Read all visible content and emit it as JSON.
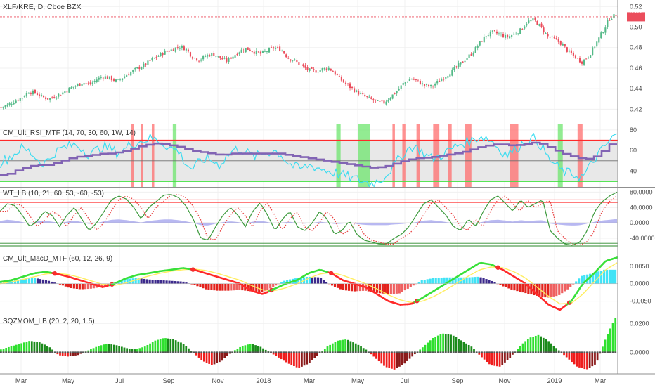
{
  "colors": {
    "candle_up": "#53b987",
    "candle_down": "#eb4d5c",
    "rsi_fast": "#3cdcf0",
    "rsi_slow": "#8264b4",
    "rsi_upper": "#ff2a2a",
    "rsi_lower": "#3fe03f",
    "rsi_mid": "#6e6e6e",
    "rsi_bg": "#e8e8e8",
    "rsi_hit_high": "#ff6e6e",
    "rsi_hit_low": "#6ee66e",
    "wt_line1": "#3c9a3c",
    "wt_line2": "#e84040",
    "wt_hist": "#a6a6ee",
    "wt_ob": "#ff2a2a",
    "wt_os": "#2a8a2a",
    "macd_up": "#39e039",
    "macd_down": "#ff2a2a",
    "macd_signal": "#ffee60",
    "macd_cross": "#ee3030",
    "hist_up_strong": "#3fe3f6",
    "hist_up_weak": "#3c2a8c",
    "hist_down_strong": "#e2221c",
    "hist_down_weak": "#ee6060",
    "sqz_up_strong": "#2fe02f",
    "sqz_up_weak": "#1a8a1a",
    "sqz_down_strong": "#ef1c1c",
    "sqz_down_weak": "#8a1a1a",
    "price_tag": "#eb4d5c",
    "axis_text": "#4a4a4a",
    "divider": "#8f8f8f"
  },
  "panes": {
    "price": {
      "title": "XLF/KRE, D, Cboe BZX",
      "last_label": "0.51"
    },
    "rsi": {
      "title": "CM_Ult_RSI_MTF (14, 70, 30, 60, 1W, 14)"
    },
    "wt": {
      "title": "WT_LB (10, 21, 60, 53, -60, -53)"
    },
    "macd": {
      "title": "CM_Ult_MacD_MTF (60, 12, 26, 9)"
    },
    "sqz": {
      "title": "SQZMOM_LB (20, 2, 20, 1.5)"
    }
  },
  "chart_data": {
    "type": "line",
    "x": {
      "tick_labels": [
        "Mar",
        "May",
        "Jul",
        "Sep",
        "Nov",
        "2018",
        "Mar",
        "May",
        "Jul",
        "Sep",
        "Nov",
        "2019",
        "Mar"
      ],
      "start_month": "2017-02",
      "end_month": "2019-03"
    },
    "price": {
      "type": "candlestick",
      "ylim": [
        0.41,
        0.525
      ],
      "yticks": [
        0.42,
        0.44,
        0.46,
        0.48,
        0.5,
        0.52
      ],
      "ytick_labels": [
        "0.42",
        "0.44",
        "0.46",
        "0.48",
        "0.50",
        "0.52"
      ],
      "last": 0.51,
      "close_path": [
        0.422,
        0.424,
        0.428,
        0.431,
        0.437,
        0.436,
        0.432,
        0.43,
        0.433,
        0.436,
        0.44,
        0.443,
        0.446,
        0.444,
        0.449,
        0.452,
        0.45,
        0.447,
        0.452,
        0.456,
        0.46,
        0.463,
        0.468,
        0.472,
        0.476,
        0.478,
        0.481,
        0.479,
        0.471,
        0.468,
        0.472,
        0.474,
        0.47,
        0.467,
        0.472,
        0.477,
        0.479,
        0.476,
        0.474,
        0.477,
        0.48,
        0.478,
        0.47,
        0.467,
        0.462,
        0.458,
        0.457,
        0.459,
        0.46,
        0.454,
        0.447,
        0.442,
        0.437,
        0.433,
        0.43,
        0.427,
        0.426,
        0.432,
        0.438,
        0.446,
        0.45,
        0.447,
        0.443,
        0.442,
        0.447,
        0.452,
        0.457,
        0.463,
        0.469,
        0.475,
        0.484,
        0.492,
        0.495,
        0.493,
        0.49,
        0.493,
        0.497,
        0.505,
        0.507,
        0.5,
        0.491,
        0.488,
        0.484,
        0.476,
        0.471,
        0.466,
        0.472,
        0.483,
        0.495,
        0.508,
        0.512
      ]
    },
    "rsi": {
      "ylim": [
        26,
        84
      ],
      "yticks": [
        40,
        60,
        80
      ],
      "levels": {
        "upper": 70,
        "lower": 30,
        "mid": 60
      },
      "fast_path": [
        48,
        52,
        56,
        62,
        60,
        55,
        48,
        50,
        58,
        62,
        64,
        66,
        62,
        56,
        60,
        64,
        62,
        58,
        60,
        66,
        68,
        70,
        72,
        70,
        66,
        62,
        60,
        48,
        42,
        48,
        52,
        50,
        46,
        54,
        60,
        62,
        58,
        54,
        56,
        58,
        60,
        56,
        48,
        44,
        42,
        46,
        44,
        42,
        40,
        38,
        36,
        34,
        32,
        30,
        28,
        30,
        34,
        42,
        50,
        58,
        64,
        62,
        56,
        52,
        54,
        58,
        62,
        66,
        68,
        70,
        74,
        72,
        68,
        60,
        56,
        60,
        66,
        70,
        72,
        64,
        52,
        46,
        40,
        38,
        36,
        34,
        44,
        54,
        62,
        70,
        76
      ],
      "slow_path": [
        36,
        37,
        40,
        42,
        44,
        46,
        46,
        46,
        48,
        50,
        52,
        54,
        54,
        55,
        56,
        57,
        57,
        58,
        59,
        61,
        63,
        65,
        66,
        67,
        66,
        65,
        64,
        62,
        60,
        59,
        58,
        57,
        56,
        56,
        57,
        57,
        57,
        57,
        57,
        57,
        57,
        57,
        56,
        55,
        54,
        53,
        52,
        51,
        50,
        49,
        48,
        47,
        46,
        45,
        44,
        43,
        44,
        45,
        47,
        49,
        51,
        52,
        53,
        53,
        54,
        55,
        56,
        57,
        58,
        60,
        62,
        64,
        65,
        66,
        66,
        65,
        65,
        66,
        67,
        68,
        66,
        63,
        60,
        57,
        55,
        53,
        52,
        52,
        55,
        60,
        66
      ],
      "ob_bands": [
        [
          0.213,
          0.217
        ],
        [
          0.228,
          0.232
        ],
        [
          0.246,
          0.25
        ],
        [
          0.636,
          0.64
        ],
        [
          0.652,
          0.657
        ],
        [
          0.675,
          0.68
        ],
        [
          0.702,
          0.712
        ],
        [
          0.726,
          0.732
        ],
        [
          0.754,
          0.764
        ],
        [
          0.826,
          0.84
        ],
        [
          0.936,
          0.944
        ]
      ],
      "os_bands": [
        [
          0.28,
          0.286
        ],
        [
          0.545,
          0.552
        ],
        [
          0.58,
          0.6
        ],
        [
          0.904,
          0.912
        ]
      ]
    },
    "wavetrend": {
      "ylim": [
        -60,
        88
      ],
      "yticks": [
        -40,
        0,
        40,
        80
      ],
      "ytick_labels": [
        "-40.0000",
        "0.0000",
        "40.0000",
        "80.0000"
      ],
      "levels": {
        "ob1": 60,
        "ob2": 53,
        "os1": -60,
        "os2": -53
      },
      "wt1_path": [
        30,
        50,
        45,
        20,
        -10,
        5,
        30,
        20,
        -10,
        20,
        40,
        10,
        -20,
        0,
        30,
        60,
        70,
        62,
        40,
        10,
        40,
        55,
        72,
        74,
        66,
        44,
        10,
        -40,
        -45,
        -10,
        20,
        40,
        20,
        -10,
        30,
        52,
        20,
        -20,
        10,
        30,
        -10,
        -20,
        0,
        30,
        10,
        -30,
        -20,
        5,
        -30,
        -45,
        -50,
        -55,
        -55,
        -40,
        -30,
        -10,
        20,
        50,
        60,
        40,
        20,
        -10,
        -20,
        10,
        -10,
        30,
        60,
        70,
        50,
        30,
        60,
        40,
        50,
        60,
        -20,
        -40,
        -55,
        -58,
        -50,
        -20,
        30,
        55,
        70,
        80
      ],
      "hist_path": [
        5,
        8,
        6,
        2,
        -2,
        4,
        6,
        3,
        0,
        3,
        6,
        2,
        -3,
        0,
        4,
        8,
        9,
        7,
        4,
        1,
        5,
        7,
        9,
        9,
        7,
        4,
        0,
        -6,
        -7,
        -2,
        2,
        4,
        2,
        -1,
        3,
        6,
        2,
        -2,
        1,
        3,
        -1,
        -2,
        0,
        3,
        1,
        -3,
        -2,
        0,
        -3,
        -5,
        -6,
        -6,
        -6,
        -4,
        -3,
        -1,
        2,
        6,
        7,
        5,
        2,
        -1,
        -2,
        1,
        -1,
        3,
        7,
        8,
        6,
        3,
        7,
        5,
        6,
        7,
        -2,
        -4,
        -6,
        -7,
        -6,
        -2,
        3,
        6,
        8,
        10
      ]
    },
    "macd": {
      "ylim": [
        -0.0075,
        0.009
      ],
      "yticks": [
        -0.005,
        0.0,
        0.005
      ],
      "ytick_labels": [
        "-0.0050",
        "0.0000",
        "0.0050"
      ],
      "line_path": [
        0.0005,
        0.001,
        0.002,
        0.003,
        0.0034,
        0.0028,
        0.002,
        0.001,
        0.0,
        -0.001,
        0.0,
        0.0015,
        0.0025,
        0.003,
        0.0036,
        0.004,
        0.0045,
        0.004,
        0.003,
        0.002,
        0.001,
        0.0,
        -0.002,
        -0.003,
        -0.0015,
        0.0,
        0.001,
        0.003,
        0.004,
        0.003,
        0.001,
        0.0,
        -0.001,
        -0.003,
        -0.005,
        -0.006,
        -0.0058,
        -0.004,
        -0.002,
        0.0,
        0.002,
        0.004,
        0.006,
        0.0055,
        0.004,
        0.002,
        0.0,
        -0.003,
        -0.006,
        -0.0075,
        -0.005,
        0.0,
        0.003,
        0.0065,
        0.0075
      ],
      "signal_path": [
        0.0,
        0.0005,
        0.0012,
        0.002,
        0.0028,
        0.003,
        0.0026,
        0.0018,
        0.0008,
        -0.0002,
        -0.0005,
        0.0002,
        0.0012,
        0.0022,
        0.003,
        0.0036,
        0.004,
        0.0042,
        0.0038,
        0.003,
        0.002,
        0.001,
        -0.0005,
        -0.0018,
        -0.002,
        -0.0012,
        0.0,
        0.0015,
        0.0028,
        0.0032,
        0.0024,
        0.0012,
        0.0,
        -0.0015,
        -0.0032,
        -0.0046,
        -0.0054,
        -0.005,
        -0.0036,
        -0.0018,
        0.0002,
        0.0022,
        0.004,
        0.0048,
        0.0046,
        0.0034,
        0.0016,
        -0.001,
        -0.0036,
        -0.0058,
        -0.0056,
        -0.003,
        0.0005,
        0.004,
        0.006
      ],
      "hist_path": [
        0.0006,
        0.001,
        0.0014,
        0.0016,
        0.001,
        0.0,
        -0.0012,
        -0.0016,
        -0.0014,
        -0.0008,
        0.0004,
        0.0014,
        0.0016,
        0.0012,
        0.001,
        0.0008,
        0.0006,
        -0.0004,
        -0.0016,
        -0.002,
        -0.002,
        -0.0018,
        -0.0022,
        -0.0024,
        -0.0008,
        0.001,
        0.0016,
        0.002,
        0.0018,
        -0.0004,
        -0.0018,
        -0.0022,
        -0.002,
        -0.0026,
        -0.003,
        -0.0028,
        -0.001,
        0.001,
        0.0016,
        0.0018,
        0.0018,
        0.0018,
        0.002,
        0.001,
        -0.0006,
        -0.0018,
        -0.0026,
        -0.0034,
        -0.004,
        -0.0034,
        -0.0012,
        0.0022,
        0.003,
        0.004,
        0.004
      ]
    },
    "squeeze": {
      "ylim": [
        -0.013,
        0.026
      ],
      "yticks": [
        0.0,
        0.02
      ],
      "ytick_labels": [
        "0.0000",
        "0.0200"
      ],
      "hist_path": [
        0.002,
        0.004,
        0.006,
        0.008,
        0.007,
        0.004,
        -0.002,
        -0.003,
        -0.002,
        0.001,
        0.004,
        0.006,
        0.005,
        0.003,
        0.002,
        0.004,
        0.008,
        0.01,
        0.009,
        0.006,
        0.0,
        -0.006,
        -0.009,
        -0.006,
        0.0,
        0.004,
        0.006,
        0.004,
        0.0,
        -0.004,
        -0.008,
        -0.011,
        -0.008,
        -0.002,
        0.004,
        0.008,
        0.009,
        0.006,
        0.002,
        -0.004,
        -0.01,
        -0.012,
        -0.008,
        -0.002,
        0.004,
        0.01,
        0.013,
        0.012,
        0.008,
        0.004,
        -0.003,
        -0.009,
        -0.01,
        -0.004,
        0.004,
        0.01,
        0.012,
        0.008,
        0.002,
        -0.004,
        -0.01,
        -0.012,
        -0.008,
        0.01,
        0.024
      ]
    }
  }
}
